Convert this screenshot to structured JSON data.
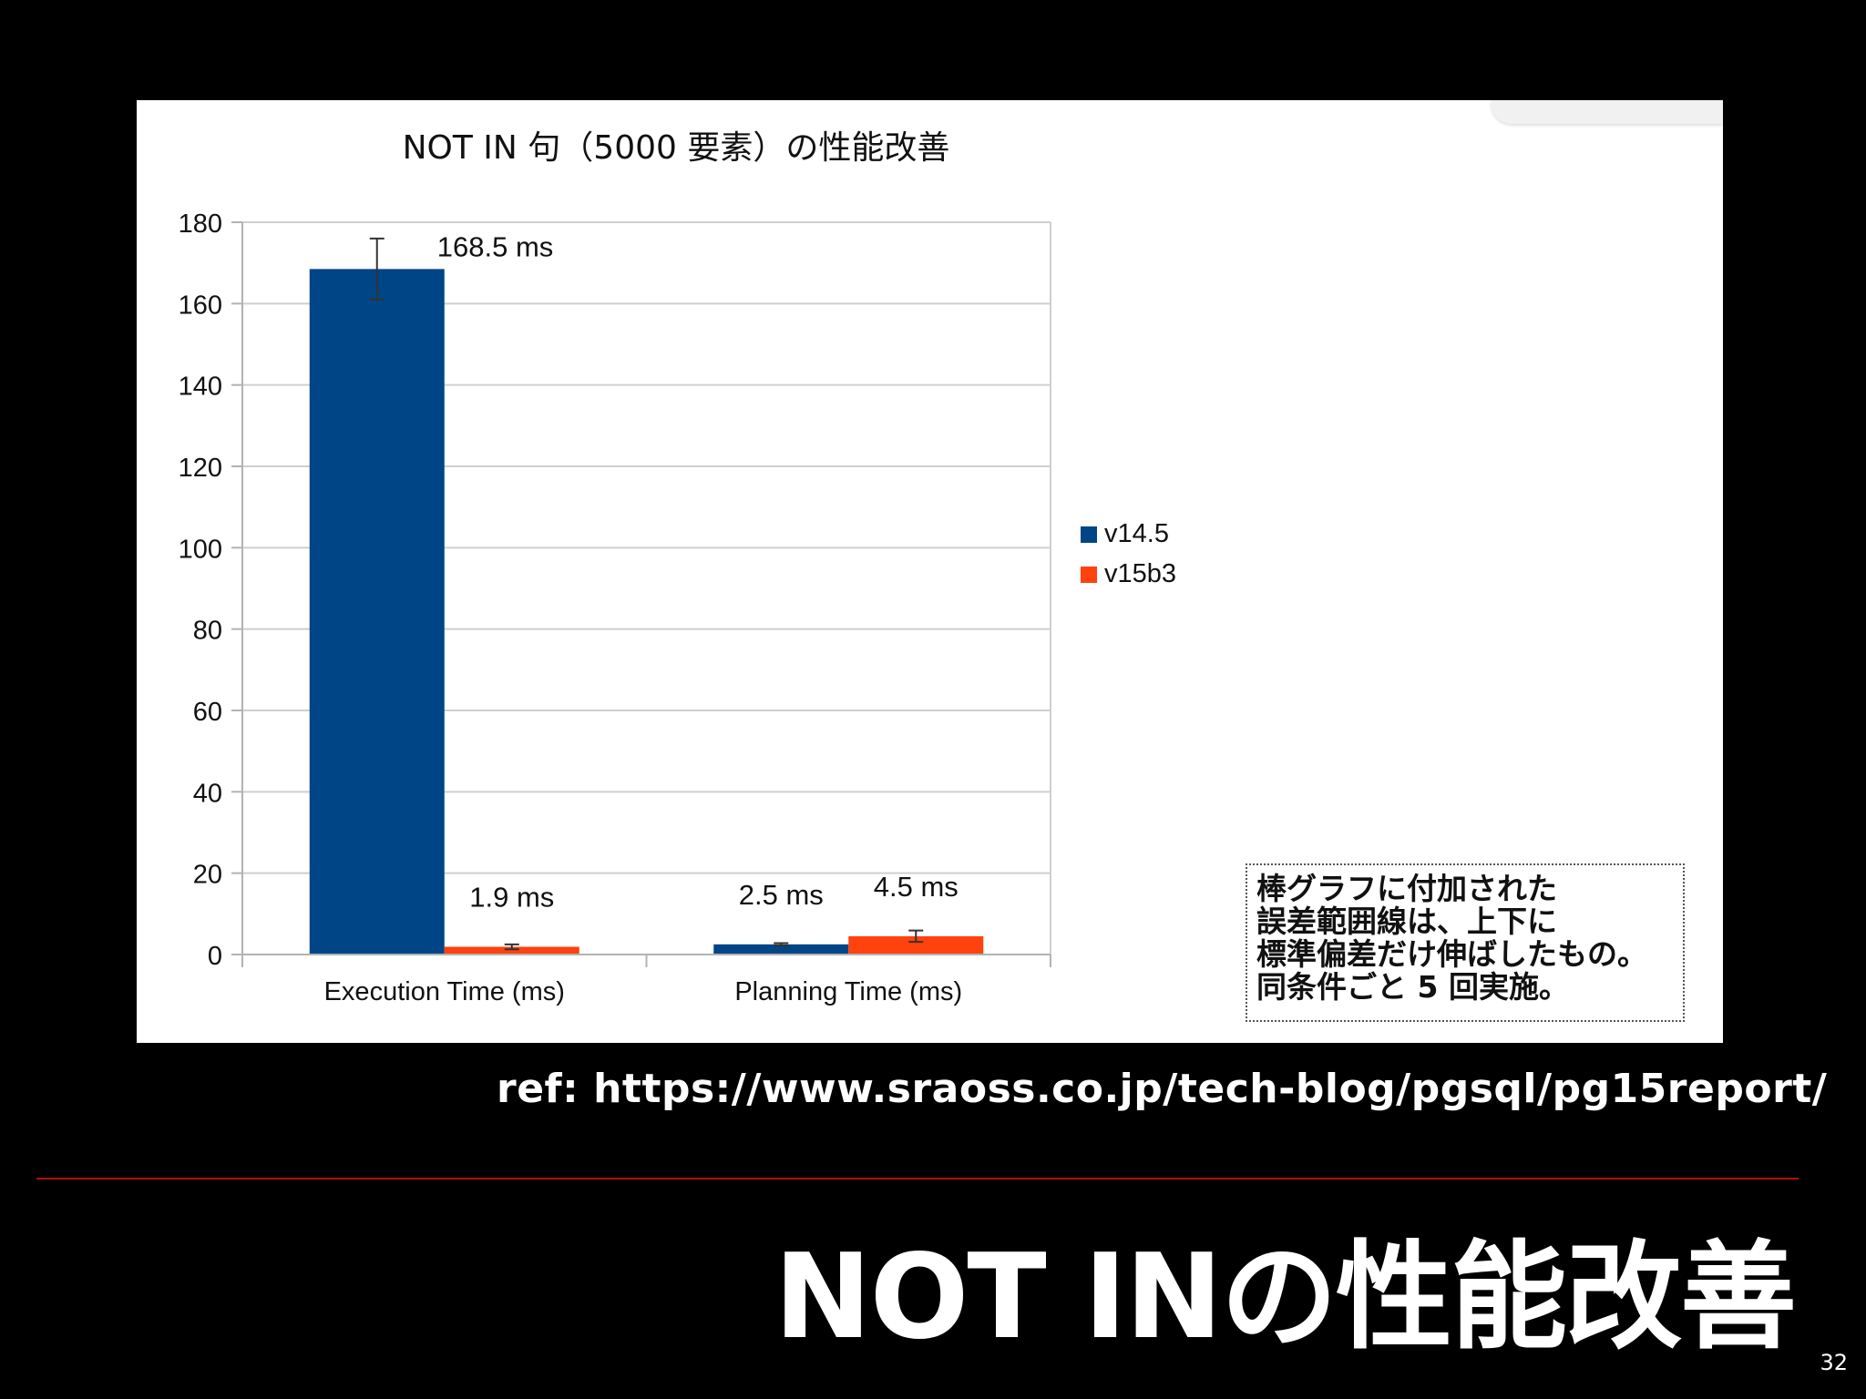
{
  "slide": {
    "title": "NOT INの性能改善",
    "reference": "ref: https://www.sraoss.co.jp/tech-blog/pgsql/pg15report/",
    "page_number": "32",
    "accent_color": "#b01010",
    "background_color": "#000000"
  },
  "note": {
    "lines": [
      "棒グラフに付加された",
      "誤差範囲線は、上下に",
      "標準偏差だけ伸ばしたもの。",
      "同条件ごと 5 回実施。"
    ]
  },
  "chart_data": {
    "type": "bar",
    "title": "NOT IN 句（5000 要素）の性能改善",
    "xlabel": "",
    "ylabel": "",
    "categories": [
      "Execution Time (ms)",
      "Planning Time (ms)"
    ],
    "series": [
      {
        "name": "v14.5",
        "color": "#004586",
        "values": [
          168.5,
          2.5
        ],
        "errors": [
          7.5,
          0.3
        ],
        "labels": [
          "168.5 ms",
          "2.5 ms"
        ],
        "label_visible": [
          true,
          true
        ]
      },
      {
        "name": "v15b3",
        "color": "#ff420e",
        "values": [
          1.9,
          4.5
        ],
        "errors": [
          0.6,
          1.4
        ],
        "labels": [
          "1.9 ms",
          "4.5 ms"
        ],
        "label_visible": [
          true,
          true
        ]
      }
    ],
    "ylim": [
      0,
      180
    ],
    "yticks": [
      "0",
      "20",
      "40",
      "60",
      "80",
      "100",
      "120",
      "140",
      "160",
      "180"
    ],
    "grid": true,
    "legend_position": "right"
  }
}
